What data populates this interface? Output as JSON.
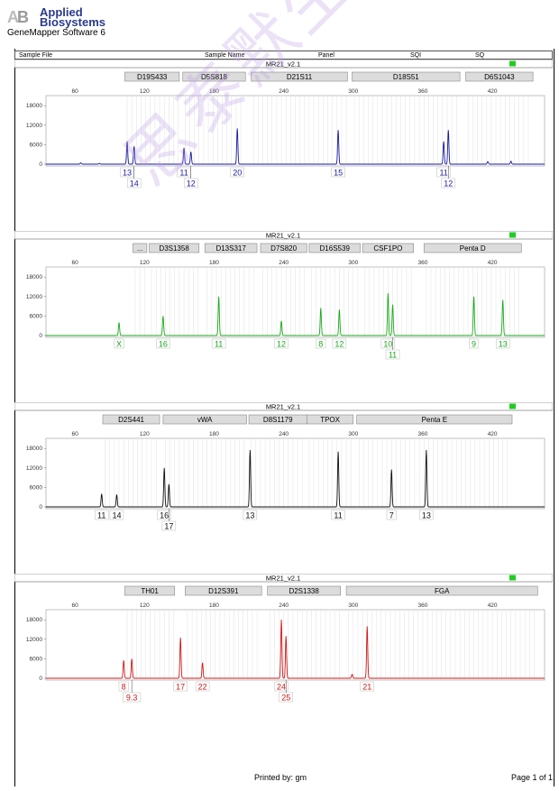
{
  "header": {
    "brand_line1": "Applied",
    "brand_line2": "Biosystems",
    "software": "GeneMapper Software 6",
    "columns": [
      "Sample File",
      "Sample Name",
      "Panel",
      "SQI",
      "SQ"
    ]
  },
  "footer": {
    "printed_by": "Printed by: gm",
    "page": "Page 1 of 1"
  },
  "watermark": "思泰默生物科技",
  "chart_data": [
    {
      "type": "line",
      "title": "MR21_v2.1",
      "color": "#1a1aa0",
      "xlim": [
        35,
        465
      ],
      "x_ticks": [
        60,
        120,
        180,
        240,
        300,
        360,
        420
      ],
      "ylim": [
        0,
        20000
      ],
      "y_ticks": [
        0,
        6000,
        12000,
        18000
      ],
      "markers": [
        {
          "name": "D19S433",
          "start": 103,
          "end": 150
        },
        {
          "name": "D5S818",
          "start": 153,
          "end": 207
        },
        {
          "name": "D21S11",
          "start": 212,
          "end": 295
        },
        {
          "name": "D18S51",
          "start": 299,
          "end": 392
        },
        {
          "name": "D6S1043",
          "start": 397,
          "end": 455
        }
      ],
      "peaks": [
        [
          65,
          400
        ],
        [
          81,
          250
        ],
        [
          105,
          7000
        ],
        [
          111,
          5500
        ],
        [
          154,
          5000
        ],
        [
          160,
          3800
        ],
        [
          200,
          11000
        ],
        [
          287,
          10500
        ],
        [
          378,
          7000
        ],
        [
          382,
          10500
        ],
        [
          416,
          800
        ],
        [
          436,
          900
        ]
      ],
      "alleles": [
        {
          "x": 105,
          "label": "13",
          "row": 1
        },
        {
          "x": 111,
          "label": "14",
          "row": 2
        },
        {
          "x": 154,
          "label": "11",
          "row": 1
        },
        {
          "x": 160,
          "label": "12",
          "row": 2
        },
        {
          "x": 200,
          "label": "20",
          "row": 1
        },
        {
          "x": 287,
          "label": "15",
          "row": 1
        },
        {
          "x": 378,
          "label": "11",
          "row": 1
        },
        {
          "x": 382,
          "label": "12",
          "row": 2
        }
      ]
    },
    {
      "type": "line",
      "title": "MR21_v2.1",
      "color": "#1aaa1a",
      "xlim": [
        35,
        465
      ],
      "x_ticks": [
        60,
        120,
        180,
        240,
        300,
        360,
        420
      ],
      "ylim": [
        0,
        20000
      ],
      "y_ticks": [
        0,
        6000,
        12000,
        18000
      ],
      "markers": [
        {
          "name": "...",
          "start": 110,
          "end": 122
        },
        {
          "name": "D3S1358",
          "start": 124,
          "end": 167
        },
        {
          "name": "D13S317",
          "start": 172,
          "end": 217
        },
        {
          "name": "D7S820",
          "start": 220,
          "end": 260
        },
        {
          "name": "D16S539",
          "start": 262,
          "end": 306
        },
        {
          "name": "CSF1PO",
          "start": 308,
          "end": 352
        },
        {
          "name": "Penta D",
          "start": 361,
          "end": 445
        }
      ],
      "peaks": [
        [
          98,
          4000
        ],
        [
          136,
          6000
        ],
        [
          184,
          12000
        ],
        [
          238,
          4500
        ],
        [
          272,
          8500
        ],
        [
          288,
          8000
        ],
        [
          330,
          13000
        ],
        [
          334,
          9500
        ],
        [
          404,
          12000
        ],
        [
          429,
          11000
        ]
      ],
      "alleles": [
        {
          "x": 98,
          "label": "X",
          "row": 1
        },
        {
          "x": 136,
          "label": "16",
          "row": 1
        },
        {
          "x": 184,
          "label": "11",
          "row": 1
        },
        {
          "x": 238,
          "label": "12",
          "row": 1
        },
        {
          "x": 272,
          "label": "8",
          "row": 1
        },
        {
          "x": 288,
          "label": "12",
          "row": 1
        },
        {
          "x": 330,
          "label": "10",
          "row": 1
        },
        {
          "x": 334,
          "label": "11",
          "row": 2
        },
        {
          "x": 404,
          "label": "9",
          "row": 1
        },
        {
          "x": 429,
          "label": "13",
          "row": 1
        }
      ]
    },
    {
      "type": "line",
      "title": "MR21_v2.1",
      "color": "#111111",
      "xlim": [
        35,
        465
      ],
      "x_ticks": [
        60,
        120,
        180,
        240,
        300,
        360,
        420
      ],
      "ylim": [
        0,
        20000
      ],
      "y_ticks": [
        0,
        6000,
        12000,
        18000
      ],
      "markers": [
        {
          "name": "D2S441",
          "start": 84,
          "end": 133
        },
        {
          "name": "vWA",
          "start": 136,
          "end": 208
        },
        {
          "name": "D8S1179",
          "start": 210,
          "end": 260
        },
        {
          "name": "TPOX",
          "start": 260,
          "end": 300
        },
        {
          "name": "Penta E",
          "start": 303,
          "end": 437
        }
      ],
      "peaks": [
        [
          83,
          4000
        ],
        [
          96,
          3800
        ],
        [
          137,
          12000
        ],
        [
          141,
          7000
        ],
        [
          211,
          17500
        ],
        [
          287,
          17000
        ],
        [
          333,
          11500
        ],
        [
          363,
          17500
        ]
      ],
      "alleles": [
        {
          "x": 83,
          "label": "11",
          "row": 1
        },
        {
          "x": 96,
          "label": "14",
          "row": 1
        },
        {
          "x": 137,
          "label": "16",
          "row": 1
        },
        {
          "x": 141,
          "label": "17",
          "row": 2
        },
        {
          "x": 211,
          "label": "13",
          "row": 1
        },
        {
          "x": 287,
          "label": "11",
          "row": 1
        },
        {
          "x": 333,
          "label": "7",
          "row": 1
        },
        {
          "x": 363,
          "label": "13",
          "row": 1
        }
      ]
    },
    {
      "type": "line",
      "title": "MR21_v2.1",
      "color": "#d01818",
      "xlim": [
        35,
        465
      ],
      "x_ticks": [
        60,
        120,
        180,
        240,
        300,
        360,
        420
      ],
      "ylim": [
        0,
        20000
      ],
      "y_ticks": [
        0,
        6000,
        12000,
        18000
      ],
      "markers": [
        {
          "name": "TH01",
          "start": 103,
          "end": 146
        },
        {
          "name": "D12S391",
          "start": 155,
          "end": 221
        },
        {
          "name": "D2S1338",
          "start": 226,
          "end": 289
        },
        {
          "name": "FGA",
          "start": 294,
          "end": 459
        }
      ],
      "peaks": [
        [
          102,
          5500
        ],
        [
          109,
          6000
        ],
        [
          151,
          12500
        ],
        [
          170,
          4800
        ],
        [
          238,
          18000
        ],
        [
          242,
          13000
        ],
        [
          299,
          1200
        ],
        [
          312,
          16000
        ]
      ],
      "alleles": [
        {
          "x": 102,
          "label": "8",
          "row": 1
        },
        {
          "x": 109,
          "label": "9.3",
          "row": 2
        },
        {
          "x": 151,
          "label": "17",
          "row": 1
        },
        {
          "x": 170,
          "label": "22",
          "row": 1
        },
        {
          "x": 238,
          "label": "24",
          "row": 1
        },
        {
          "x": 242,
          "label": "25",
          "row": 2
        },
        {
          "x": 312,
          "label": "21",
          "row": 1
        }
      ]
    }
  ]
}
